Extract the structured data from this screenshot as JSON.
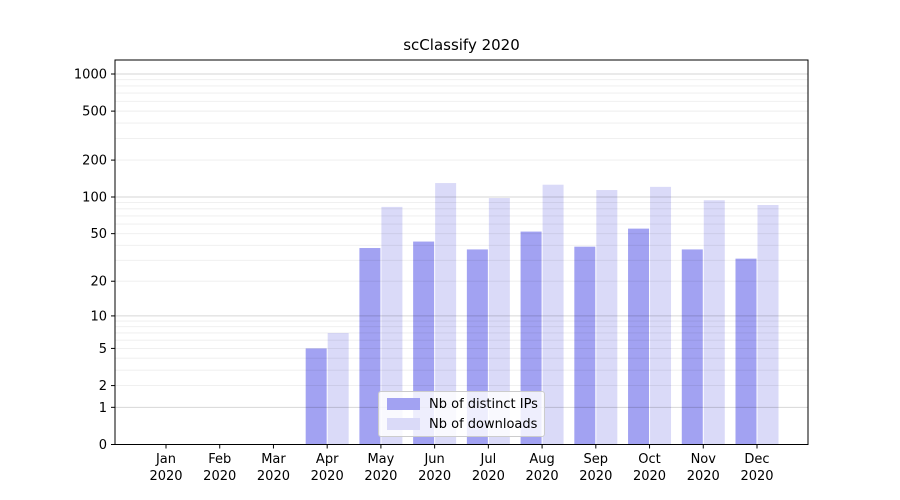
{
  "chart_data": {
    "type": "bar",
    "title": "scClassify 2020",
    "x_months": [
      "Jan",
      "Feb",
      "Mar",
      "Apr",
      "May",
      "Jun",
      "Jul",
      "Aug",
      "Sep",
      "Oct",
      "Nov",
      "Dec"
    ],
    "x_year": "2020",
    "series": [
      {
        "name": "Nb of distinct IPs",
        "color": "#a2a2f2",
        "values": [
          0,
          0,
          0,
          5,
          38,
          43,
          37,
          52,
          39,
          55,
          37,
          31
        ]
      },
      {
        "name": "Nb of downloads",
        "color": "#dadaf8",
        "values": [
          0,
          0,
          0,
          7,
          83,
          130,
          98,
          126,
          114,
          121,
          94,
          86
        ]
      }
    ],
    "y_ticks": [
      0,
      1,
      2,
      5,
      10,
      20,
      50,
      100,
      200,
      500,
      1000
    ],
    "y_scale": "log10(value+1)",
    "ylim": [
      0,
      1300
    ],
    "grid": "on",
    "grid_minor_mantissas": [
      2,
      3,
      4,
      5,
      6,
      7,
      8,
      9
    ],
    "legend_position": "lower center",
    "xlabel": "",
    "ylabel": ""
  }
}
